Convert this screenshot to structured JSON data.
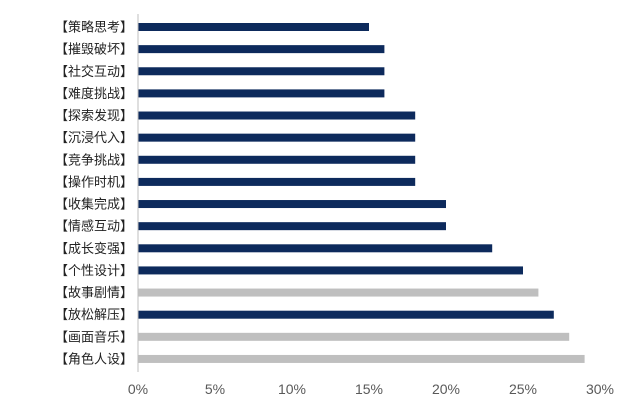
{
  "chart_data": {
    "type": "bar",
    "orientation": "horizontal",
    "categories": [
      "【策略思考】",
      "【摧毁破坏】",
      "【社交互动】",
      "【难度挑战】",
      "【探索发现】",
      "【沉浸代入】",
      "【竞争挑战】",
      "【操作时机】",
      "【收集完成】",
      "【情感互动】",
      "【成长变强】",
      "【个性设计】",
      "【故事剧情】",
      "【放松解压】",
      "【画面音乐】",
      "【角色人设】"
    ],
    "values": [
      15,
      16,
      16,
      16,
      18,
      18,
      18,
      18,
      20,
      20,
      23,
      25,
      26,
      27,
      28,
      29
    ],
    "bar_colors": [
      "#0d2a5c",
      "#0d2a5c",
      "#0d2a5c",
      "#0d2a5c",
      "#0d2a5c",
      "#0d2a5c",
      "#0d2a5c",
      "#0d2a5c",
      "#0d2a5c",
      "#0d2a5c",
      "#0d2a5c",
      "#0d2a5c",
      "#bfbfbf",
      "#0d2a5c",
      "#bfbfbf",
      "#bfbfbf"
    ],
    "xlim": [
      0,
      30
    ],
    "xticks": [
      0,
      5,
      10,
      15,
      20,
      25,
      30
    ],
    "xtick_labels": [
      "0%",
      "5%",
      "10%",
      "15%",
      "20%",
      "25%",
      "30%"
    ],
    "value_unit": "%",
    "grid": false,
    "legend": "none",
    "title": "",
    "xlabel": "",
    "ylabel": ""
  }
}
